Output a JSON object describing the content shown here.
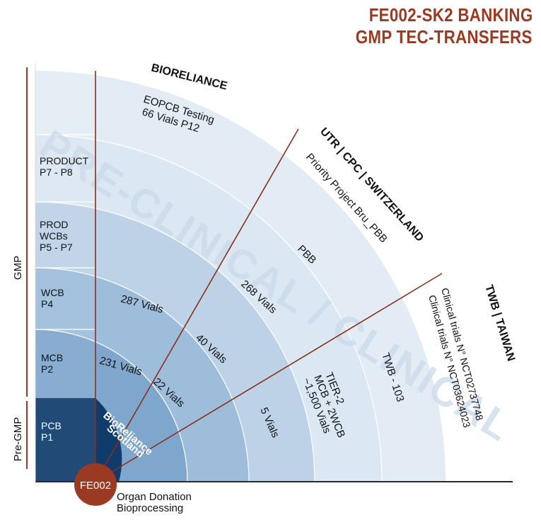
{
  "title": {
    "line1": "FE002-SK2  BANKING",
    "line2": "GMP TEC-TRANSFERS"
  },
  "colors": {
    "accent": "#9b3a22",
    "ring_dark": "#0f3c6b",
    "ring1": "#5f8fbf",
    "ring2": "#7fa7cd",
    "ring3": "#9dbddb",
    "ring4": "#bdd2e7",
    "ring5": "#dbe7f2",
    "ring6": "#ecf2f8",
    "watermark": "#c9d9ea"
  },
  "phases": {
    "gmp": "GMP",
    "pregmp": "Pre-GMP"
  },
  "levels": [
    {
      "line1": "PCB",
      "line2": "P1"
    },
    {
      "line1": "MCB",
      "line2": "P2"
    },
    {
      "line1": "WCB",
      "line2": "P4"
    },
    {
      "line1": "PROD",
      "line2": "WCBs",
      "line3": "P5 - P7"
    },
    {
      "line1": "PRODUCT",
      "line2": "P7 - P8"
    }
  ],
  "origin": {
    "badge": "FE002",
    "caption1": "Organ Donation",
    "caption2": "Bioprocessing"
  },
  "core": {
    "line1": "BioReliance",
    "line2": "Scotland"
  },
  "watermark": "PRE-CLINICAL  /  CLINICAL",
  "sectors": {
    "bioreliance": {
      "name": "BIORELIANCE",
      "testing1": "EOPCB Testing",
      "testing2": "66 Vials P12",
      "mcb": "231 Vials",
      "wcb": "287 Vials"
    },
    "utr": {
      "name": "UTR | CPC | SWITZERLAND",
      "project": "Priority Project Bru_PBB",
      "code": "PBB",
      "mcb": "22 Vials",
      "wcb": "40 Vials",
      "prod": "268 Vials"
    },
    "twb": {
      "name": "TWB | TAIWAN",
      "trial1": "Clinical trials N° NCT02737748",
      "trial2": "Clinical trials N° NCT03624023",
      "code": "TWB - 103",
      "tier1": "TIER-2",
      "tier2": "MCB + 2WCB",
      "tier3": "~1,500 Vials",
      "mcb": "5 Vials"
    }
  }
}
